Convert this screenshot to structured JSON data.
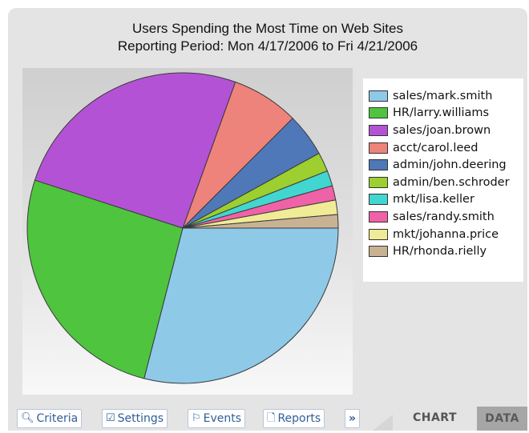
{
  "chart_data": {
    "type": "pie",
    "title": "Users Spending the Most Time on Web Sites",
    "subtitle": "Reporting Period: Mon 4/17/2006 to Fri 4/21/2006",
    "legend_position": "right",
    "slices": [
      {
        "label": "sales/mark.smith",
        "value": 29.0,
        "color": "#8ec9e8"
      },
      {
        "label": "HR/larry.williams",
        "value": 26.0,
        "color": "#4fc43f"
      },
      {
        "label": "sales/joan.brown",
        "value": 25.5,
        "color": "#b452d6"
      },
      {
        "label": "acct/carol.leed",
        "value": 7.0,
        "color": "#ee837c"
      },
      {
        "label": "admin/john.deering",
        "value": 4.5,
        "color": "#4e78b8"
      },
      {
        "label": "admin/ben.schroder",
        "value": 2.0,
        "color": "#9ccf2f"
      },
      {
        "label": "mkt/lisa.keller",
        "value": 1.6,
        "color": "#42d6d0"
      },
      {
        "label": "sales/randy.smith",
        "value": 1.5,
        "color": "#f062a7"
      },
      {
        "label": "mkt/johanna.price",
        "value": 1.5,
        "color": "#f0eb96"
      },
      {
        "label": "HR/rhonda.rielly",
        "value": 1.4,
        "color": "#c9b293"
      }
    ]
  },
  "toolbar": {
    "criteria": {
      "label": "Criteria",
      "icon": "magnifier-icon"
    },
    "settings": {
      "label": "Settings",
      "icon": "checkbox-icon"
    },
    "events": {
      "label": "Events",
      "icon": "flag-icon"
    },
    "reports": {
      "label": "Reports",
      "icon": "document-icon"
    },
    "more": {
      "label": "»"
    }
  },
  "tabs": {
    "chart": "CHART",
    "data": "DATA"
  }
}
